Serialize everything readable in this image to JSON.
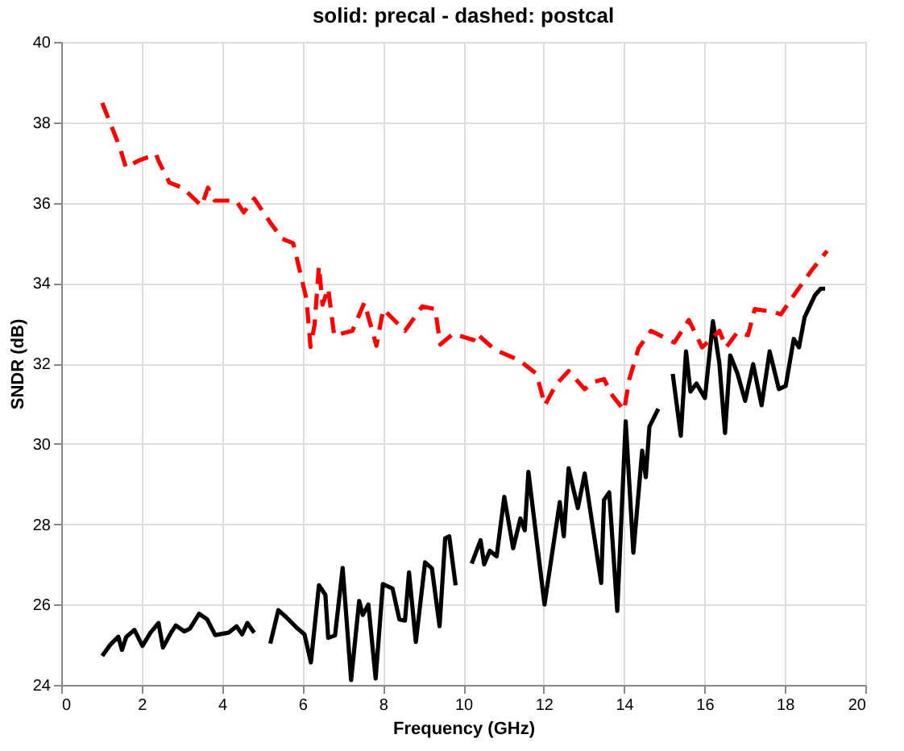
{
  "chart_data": {
    "type": "line",
    "title": "solid: precal - dashed: postcal",
    "xlabel": "Frequency (GHz)",
    "ylabel": "SNDR (dB)",
    "xlim": [
      0,
      20
    ],
    "xticks": [
      0,
      2,
      4,
      6,
      8,
      10,
      12,
      14,
      16,
      18,
      20
    ],
    "ylim": [
      24,
      40
    ],
    "yticks": [
      24,
      26,
      28,
      30,
      32,
      34,
      36,
      38,
      40
    ],
    "grid": true,
    "marker": "none",
    "series": [
      {
        "color": "#000000",
        "line_style": "solid",
        "x": [
          1.02,
          1.22,
          1.42,
          1.51,
          1.62,
          1.82,
          2.02,
          2.22,
          2.42,
          2.53,
          2.73,
          2.85,
          3.06,
          3.2,
          3.43,
          3.63,
          3.83,
          4.16,
          4.36,
          4.5,
          4.63,
          4.8,
          5.0,
          5.2,
          5.4,
          5.58,
          5.85,
          6.05,
          6.21,
          6.41,
          6.57,
          6.64,
          6.81,
          7.0,
          7.21,
          7.41,
          7.5,
          7.64,
          7.82,
          8.0,
          8.24,
          8.41,
          8.55,
          8.65,
          8.82,
          9.05,
          9.22,
          9.41,
          9.55,
          9.65,
          9.81,
          10.0,
          10.21,
          10.43,
          10.52,
          10.66,
          10.83,
          11.02,
          11.24,
          11.42,
          11.53,
          11.62,
          12.02,
          12.4,
          12.5,
          12.62,
          12.85,
          13.02,
          13.43,
          13.5,
          13.63,
          13.83,
          14.04,
          14.23,
          14.45,
          14.54,
          14.63,
          14.85,
          15.0,
          15.21,
          15.41,
          15.54,
          15.65,
          15.8,
          16.01,
          16.21,
          16.37,
          16.51,
          16.64,
          16.82,
          17.01,
          17.21,
          17.42,
          17.62,
          17.85,
          18.02,
          18.22,
          18.35,
          18.49,
          18.75,
          18.89,
          19.0
        ],
        "values": [
          24.72,
          25.0,
          25.2,
          24.87,
          25.2,
          25.37,
          24.97,
          25.3,
          25.54,
          24.93,
          25.3,
          25.48,
          25.33,
          25.4,
          25.77,
          25.63,
          25.24,
          25.3,
          25.46,
          25.26,
          25.54,
          25.3,
          null,
          25.03,
          25.86,
          25.7,
          25.43,
          25.26,
          24.56,
          26.48,
          26.24,
          25.17,
          25.23,
          26.91,
          24.12,
          26.09,
          25.74,
          26.0,
          24.16,
          26.51,
          26.4,
          25.63,
          25.6,
          26.8,
          25.07,
          27.05,
          26.9,
          25.46,
          27.65,
          27.7,
          26.48,
          null,
          27.02,
          27.6,
          27.0,
          27.34,
          27.2,
          28.68,
          27.4,
          28.14,
          27.85,
          29.3,
          26.0,
          28.55,
          27.7,
          29.39,
          28.4,
          29.26,
          26.54,
          28.6,
          28.79,
          25.84,
          30.56,
          27.29,
          29.83,
          29.17,
          30.43,
          30.87,
          null,
          31.74,
          30.2,
          32.3,
          31.3,
          31.5,
          31.14,
          33.05,
          32.0,
          30.27,
          32.2,
          31.75,
          31.07,
          31.98,
          30.96,
          32.3,
          31.36,
          31.44,
          32.61,
          32.4,
          33.15,
          33.7,
          33.86,
          33.86
        ]
      },
      {
        "color": "#ff0000",
        "line_style": "dashed",
        "x": [
          1.02,
          1.46,
          1.61,
          1.91,
          2.36,
          2.42,
          2.69,
          3.02,
          3.49,
          3.65,
          3.82,
          4.35,
          4.54,
          4.8,
          5.23,
          5.5,
          5.77,
          5.97,
          6.1,
          6.2,
          6.3,
          6.41,
          6.5,
          6.64,
          6.79,
          7.24,
          7.54,
          7.84,
          8.01,
          8.55,
          8.98,
          9.3,
          9.43,
          9.75,
          10.25,
          10.32,
          10.79,
          11.39,
          11.82,
          12.03,
          12.31,
          12.62,
          13.02,
          13.26,
          13.5,
          13.71,
          14.0,
          14.13,
          14.36,
          14.67,
          15.25,
          15.61,
          15.94,
          16.37,
          16.54,
          16.82,
          17.08,
          17.25,
          17.73,
          17.9,
          18.17,
          18.69,
          19.05
        ],
        "values": [
          38.48,
          37.37,
          36.87,
          37.04,
          37.21,
          37.04,
          36.5,
          36.37,
          35.92,
          36.37,
          36.05,
          36.05,
          35.76,
          36.1,
          35.46,
          35.1,
          34.99,
          34.15,
          33.6,
          32.41,
          32.95,
          34.42,
          33.46,
          33.87,
          32.69,
          32.81,
          33.51,
          32.44,
          33.35,
          32.81,
          33.42,
          33.35,
          32.47,
          32.74,
          32.58,
          32.75,
          32.34,
          32.08,
          31.74,
          30.96,
          31.48,
          31.81,
          31.36,
          31.54,
          31.61,
          31.2,
          30.83,
          31.61,
          32.38,
          32.81,
          32.52,
          33.08,
          32.4,
          32.81,
          32.4,
          32.78,
          32.7,
          33.35,
          33.28,
          33.22,
          33.62,
          34.35,
          34.8
        ]
      }
    ]
  }
}
